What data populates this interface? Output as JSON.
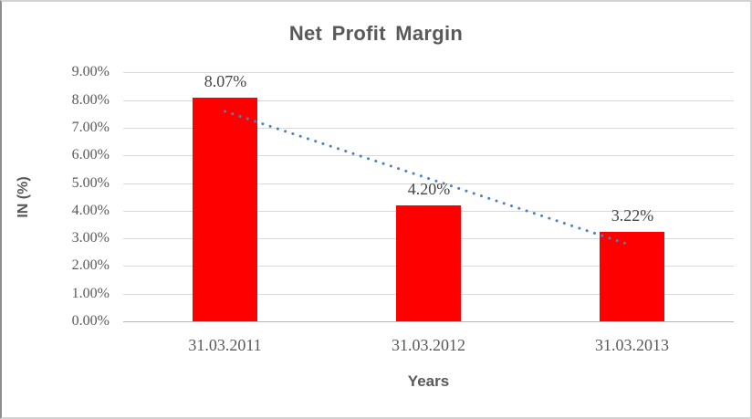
{
  "chart_data": {
    "type": "bar",
    "title": "Net Profit Margin",
    "categories": [
      "31.03.2011",
      "31.03.2012",
      "31.03.2013"
    ],
    "values": [
      8.07,
      4.2,
      3.22
    ],
    "data_labels": [
      "8.07%",
      "4.20%",
      "3.22%"
    ],
    "xlabel": "Years",
    "ylabel": "IN (%)",
    "ylim": [
      0,
      9
    ],
    "ytick_step": 1,
    "ytick_labels": [
      "0.00%",
      "1.00%",
      "2.00%",
      "3.00%",
      "4.00%",
      "5.00%",
      "6.00%",
      "7.00%",
      "8.00%",
      "9.00%"
    ],
    "grid": true,
    "legend": "none",
    "bar_color": "#ff0000",
    "text_color": "#595959",
    "gridline_color": "#d9d9d9",
    "trendline": {
      "type": "linear",
      "style": "dotted",
      "color": "#4f81bd",
      "start_value": 7.59,
      "end_value": 2.74
    }
  }
}
